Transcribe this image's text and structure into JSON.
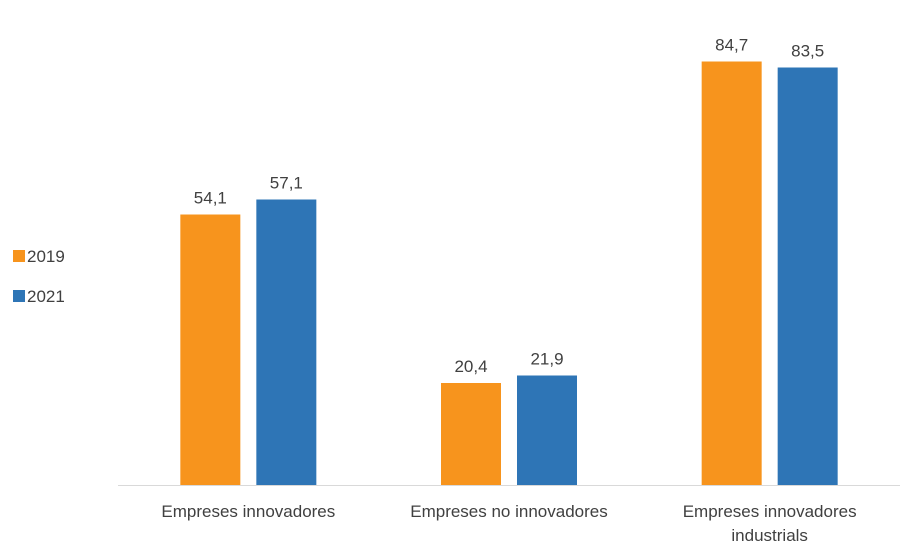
{
  "chart_data": {
    "type": "bar",
    "title": "",
    "xlabel": "",
    "ylabel": "",
    "ylim": [
      0,
      100
    ],
    "grid": false,
    "legend_position": "left",
    "categories": [
      [
        "Empreses innovadores"
      ],
      [
        "Empreses no innovadores"
      ],
      [
        "Empreses innovadores",
        "industrials"
      ]
    ],
    "series": [
      {
        "name": "2019",
        "color": "#F7941D",
        "values": [
          54.1,
          20.4,
          84.7
        ],
        "labels": [
          "54,1",
          "20,4",
          "84,7"
        ]
      },
      {
        "name": "2021",
        "color": "#2E75B6",
        "values": [
          57.1,
          21.9,
          83.5
        ],
        "labels": [
          "57,1",
          "21,9",
          "83,5"
        ]
      }
    ]
  }
}
